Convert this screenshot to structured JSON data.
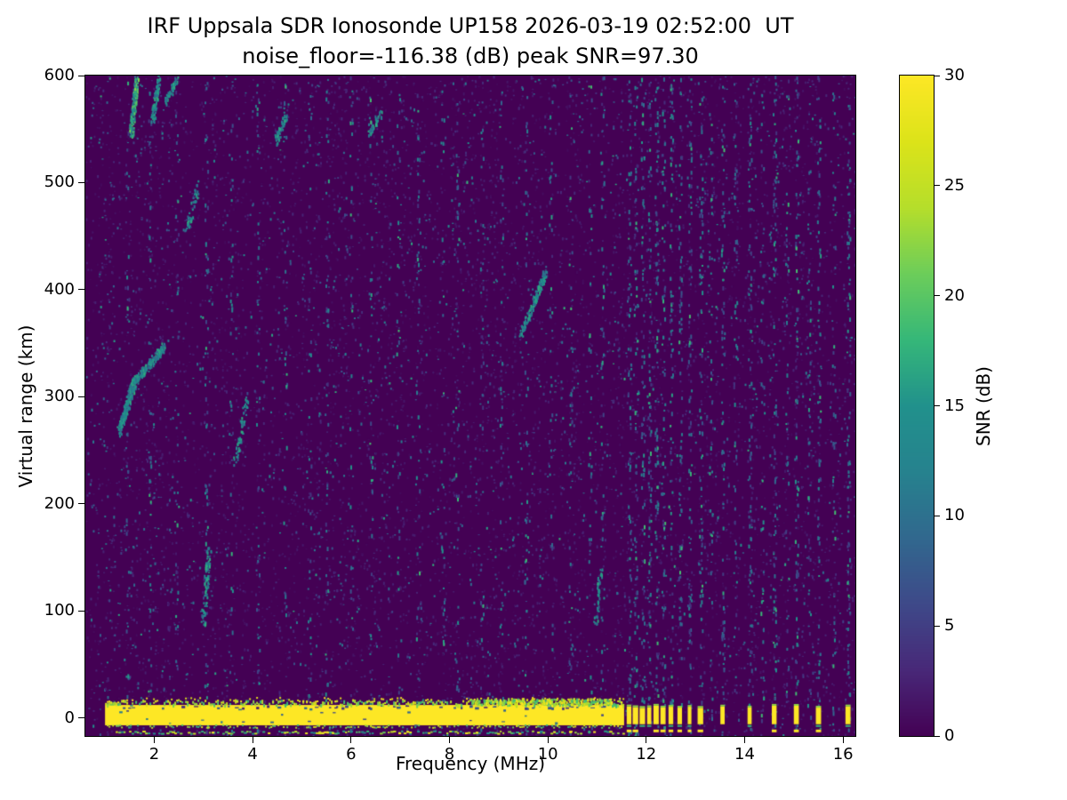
{
  "figure": {
    "background": "#ffffff"
  },
  "chart_data": {
    "type": "heatmap",
    "title_line1": "IRF Uppsala SDR Ionosonde UP158 2026-03-19 02:52:00  UT",
    "title_line2": "noise_floor=-116.38 (dB) peak SNR=97.30",
    "xlabel": "Frequency (MHz)",
    "ylabel": "Virtual range (km)",
    "xlim": [
      0.6,
      16.25
    ],
    "ylim": [
      -17,
      600
    ],
    "xticks": [
      2,
      4,
      6,
      8,
      10,
      12,
      14,
      16
    ],
    "yticks": [
      0,
      100,
      200,
      300,
      400,
      500,
      600
    ],
    "grid": false,
    "colormap": "viridis",
    "background_value_color": "#440154",
    "viridis_stops": [
      [
        0.0,
        "#440154"
      ],
      [
        0.1,
        "#482878"
      ],
      [
        0.2,
        "#3e4989"
      ],
      [
        0.3,
        "#31688e"
      ],
      [
        0.4,
        "#26828e"
      ],
      [
        0.5,
        "#21918c"
      ],
      [
        0.6,
        "#35b779"
      ],
      [
        0.7,
        "#6ccd5a"
      ],
      [
        0.8,
        "#b5de2b"
      ],
      [
        0.9,
        "#dce319"
      ],
      [
        1.0,
        "#fde725"
      ]
    ],
    "colorbar": {
      "label": "SNR (dB)",
      "min": 0,
      "max": 30,
      "ticks": [
        0,
        5,
        10,
        15,
        20,
        25,
        30
      ]
    },
    "stats": {
      "station": "IRF Uppsala SDR Ionosonde UP158",
      "timestamp_ut": "2026-03-19 02:52:00",
      "noise_floor_db": -116.38,
      "peak_snr_db": 97.3
    },
    "features": {
      "ground_return_band": {
        "x_start": 1.0,
        "x_end": 11.55,
        "km_top": 12,
        "km_bottom": -7
      },
      "sub_band_line": {
        "x_start": 1.0,
        "x_end": 11.55,
        "km": -13
      },
      "pulsed_returns_mhz": [
        11.65,
        11.78,
        11.92,
        12.06,
        12.2,
        12.34,
        12.5,
        12.68,
        12.88,
        13.1,
        13.55,
        14.1,
        14.6,
        15.05,
        15.5,
        16.1
      ],
      "rfi_stripes": [
        {
          "f": 1.45,
          "d": 40
        },
        {
          "f": 1.9,
          "d": 40
        },
        {
          "f": 2.45,
          "d": 35
        },
        {
          "f": 3.05,
          "d": 60
        },
        {
          "f": 3.55,
          "d": 38
        },
        {
          "f": 4.1,
          "d": 40
        },
        {
          "f": 4.65,
          "d": 36
        },
        {
          "f": 5.15,
          "d": 38
        },
        {
          "f": 5.5,
          "d": 48
        },
        {
          "f": 6.0,
          "d": 36
        },
        {
          "f": 6.4,
          "d": 42
        },
        {
          "f": 6.95,
          "d": 36
        },
        {
          "f": 7.35,
          "d": 40
        },
        {
          "f": 7.85,
          "d": 36
        },
        {
          "f": 8.15,
          "d": 40
        },
        {
          "f": 8.65,
          "d": 36
        },
        {
          "f": 9.05,
          "d": 40
        },
        {
          "f": 9.55,
          "d": 42
        },
        {
          "f": 10.05,
          "d": 36
        },
        {
          "f": 10.45,
          "d": 40
        },
        {
          "f": 10.85,
          "d": 38
        },
        {
          "f": 11.1,
          "d": 52
        },
        {
          "f": 11.65,
          "d": 80
        },
        {
          "f": 11.78,
          "d": 75
        },
        {
          "f": 11.92,
          "d": 85
        },
        {
          "f": 12.06,
          "d": 80
        },
        {
          "f": 12.2,
          "d": 90
        },
        {
          "f": 12.34,
          "d": 80
        },
        {
          "f": 12.5,
          "d": 85
        },
        {
          "f": 12.68,
          "d": 78
        },
        {
          "f": 12.88,
          "d": 85
        },
        {
          "f": 13.1,
          "d": 85
        },
        {
          "f": 13.3,
          "d": 48
        },
        {
          "f": 13.55,
          "d": 82
        },
        {
          "f": 13.8,
          "d": 48
        },
        {
          "f": 14.1,
          "d": 82
        },
        {
          "f": 14.35,
          "d": 48
        },
        {
          "f": 14.6,
          "d": 82
        },
        {
          "f": 14.85,
          "d": 46
        },
        {
          "f": 15.05,
          "d": 78
        },
        {
          "f": 15.3,
          "d": 46
        },
        {
          "f": 15.5,
          "d": 78
        },
        {
          "f": 15.8,
          "d": 46
        },
        {
          "f": 16.1,
          "d": 82
        }
      ],
      "echo_traces": [
        {
          "f1": 1.28,
          "km1": 268,
          "f2": 1.6,
          "km2": 318,
          "n": 220,
          "spread": 9
        },
        {
          "f1": 1.6,
          "km1": 315,
          "f2": 2.2,
          "km2": 348,
          "n": 160,
          "spread": 8
        },
        {
          "f1": 1.52,
          "km1": 545,
          "f2": 1.63,
          "km2": 600,
          "n": 150,
          "spread": 5,
          "bright": true
        },
        {
          "f1": 1.95,
          "km1": 558,
          "f2": 2.08,
          "km2": 600,
          "n": 80,
          "spread": 5
        },
        {
          "f1": 2.2,
          "km1": 575,
          "f2": 2.45,
          "km2": 598,
          "n": 50,
          "spread": 6
        },
        {
          "f1": 2.98,
          "km1": 88,
          "f2": 3.1,
          "km2": 162,
          "n": 80,
          "spread": 5
        },
        {
          "f1": 3.62,
          "km1": 238,
          "f2": 3.88,
          "km2": 300,
          "n": 60,
          "spread": 7
        },
        {
          "f1": 2.62,
          "km1": 455,
          "f2": 2.9,
          "km2": 498,
          "n": 45,
          "spread": 9
        },
        {
          "f1": 4.45,
          "km1": 538,
          "f2": 4.68,
          "km2": 565,
          "n": 50,
          "spread": 7
        },
        {
          "f1": 6.35,
          "km1": 545,
          "f2": 6.6,
          "km2": 568,
          "n": 35,
          "spread": 7
        },
        {
          "f1": 9.45,
          "km1": 358,
          "f2": 9.78,
          "km2": 398,
          "n": 100,
          "spread": 6
        },
        {
          "f1": 9.78,
          "km1": 398,
          "f2": 9.95,
          "km2": 418,
          "n": 55,
          "spread": 5
        },
        {
          "f1": 10.95,
          "km1": 85,
          "f2": 11.06,
          "km2": 140,
          "n": 45,
          "spread": 5
        }
      ]
    },
    "noise": {
      "seed": 1337,
      "base_per_col": 42
    }
  }
}
